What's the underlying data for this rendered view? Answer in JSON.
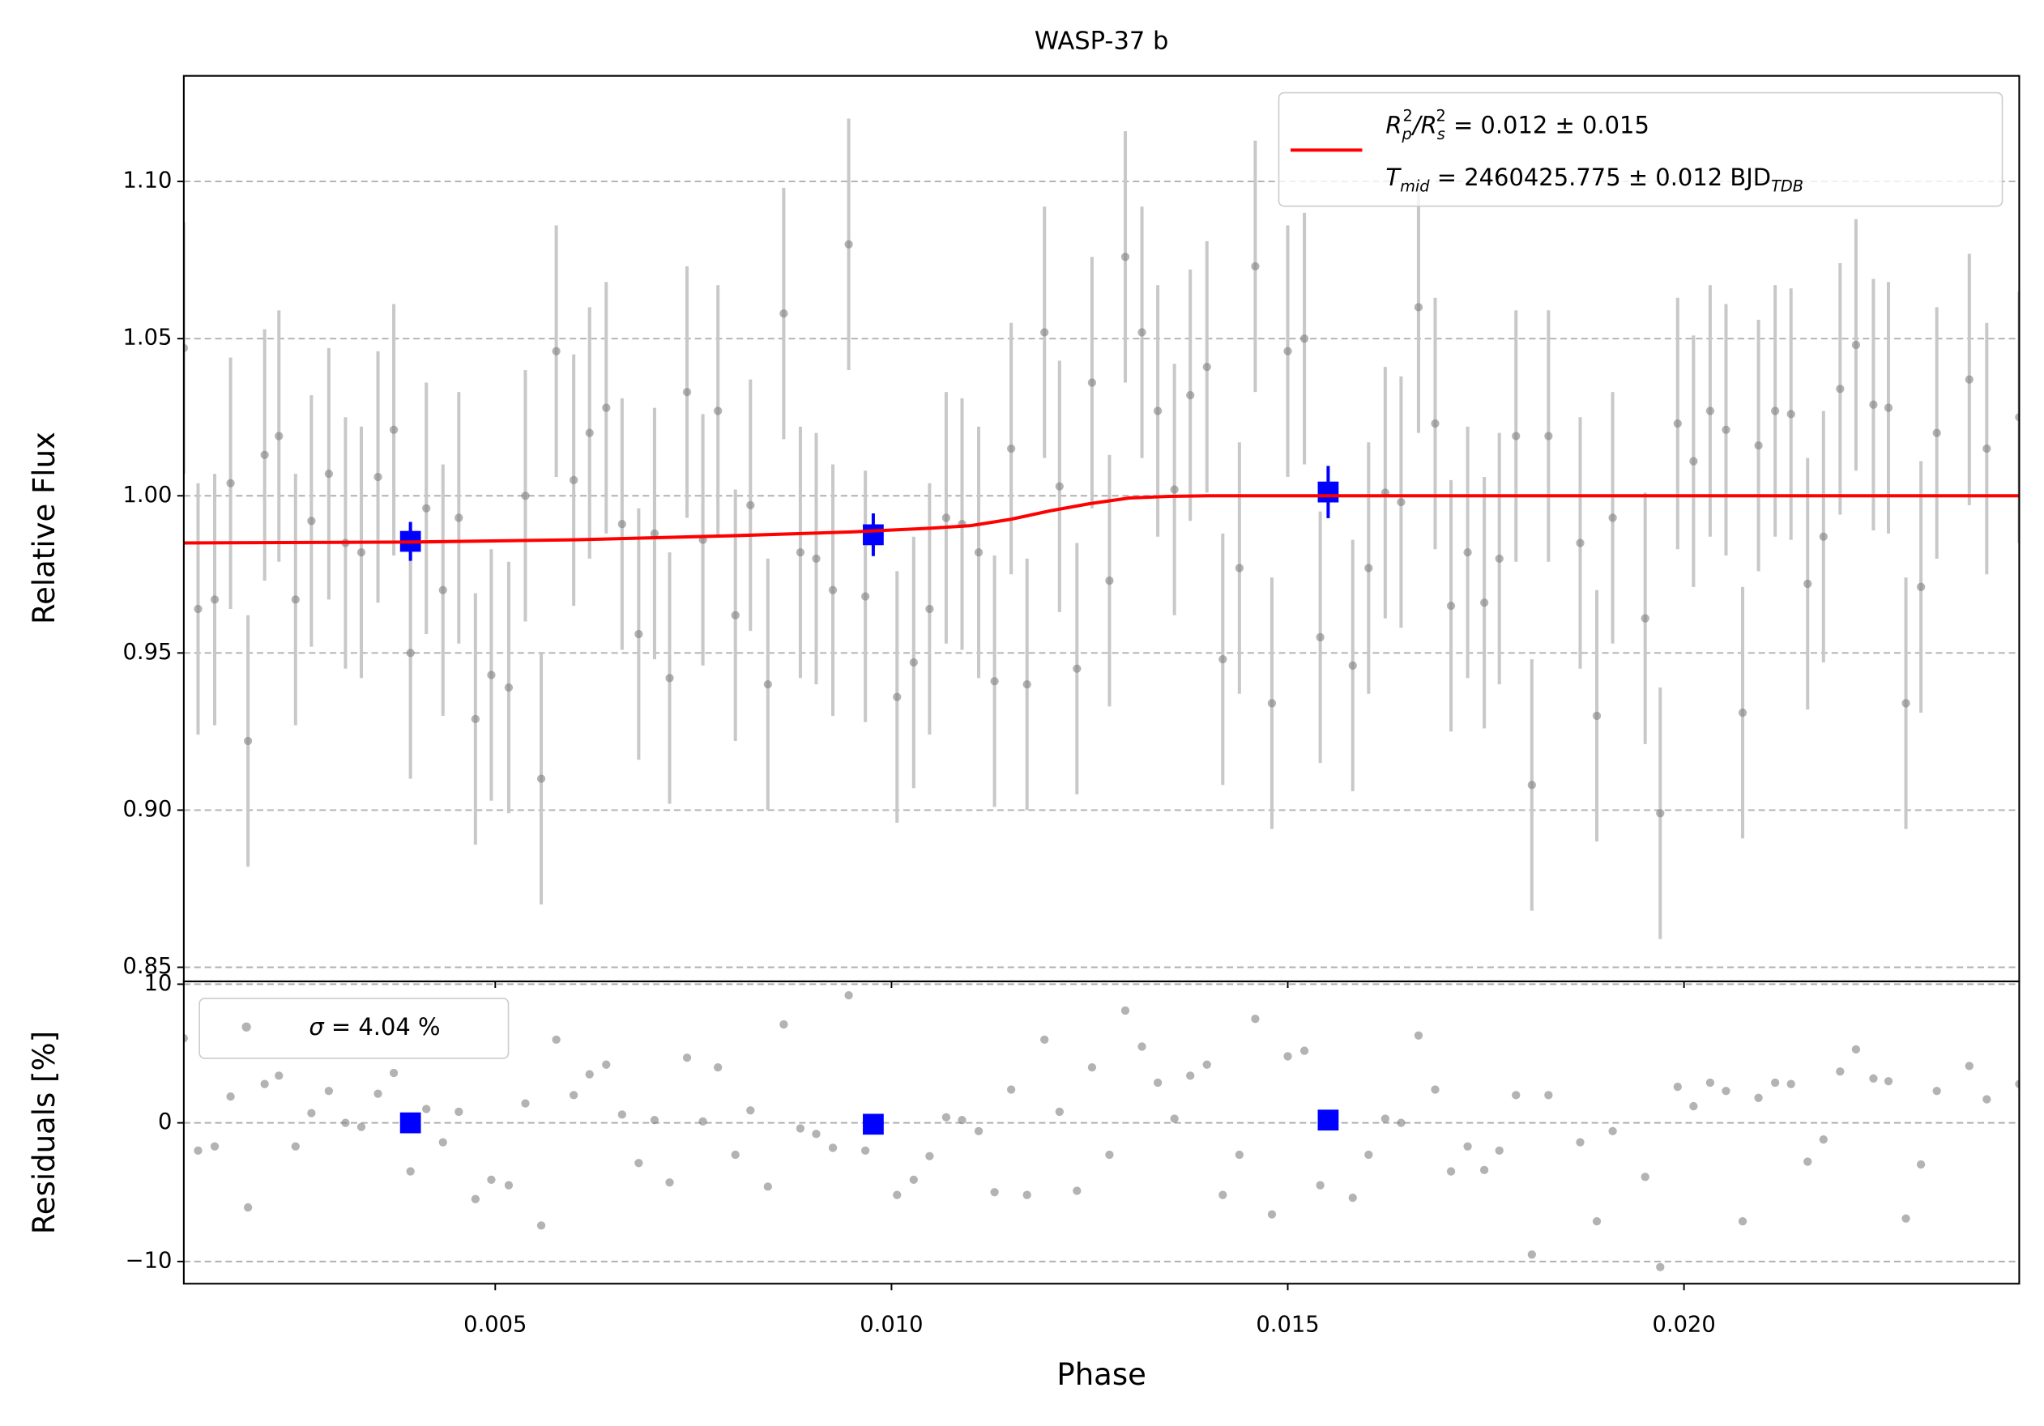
{
  "chart_data": [
    {
      "type": "scatter",
      "title": "WASP-37 b",
      "ylabel": "Relative Flux",
      "xlim": [
        0.00107,
        0.02423
      ],
      "xticks": [
        0.005,
        {
          "value": 0.01,
          "label": "0.010"
        },
        0.015,
        {
          "value": 0.02,
          "label": "0.020"
        }
      ],
      "ylim": [
        0.8455,
        1.1336
      ],
      "yticks": [
        0.85,
        {
          "value": 0.9,
          "label": "0.90"
        },
        0.95,
        {
          "value": 1.0,
          "label": "1.00"
        },
        1.05,
        {
          "value": 1.1,
          "label": "1.10"
        }
      ],
      "grid": true,
      "legend_position": "upper right",
      "series": [
        {
          "kind": "errorbar",
          "color": "#808080",
          "error_color": "#c8c8c8",
          "error": 0.04,
          "x": [
            0.00107,
            0.00125,
            0.00146,
            0.00166,
            0.00188,
            0.00209,
            0.00227,
            0.00248,
            0.00268,
            0.0029,
            0.00311,
            0.00331,
            0.00352,
            0.00372,
            0.00393,
            0.00413,
            0.00434,
            0.00454,
            0.00475,
            0.00495,
            0.00517,
            0.00538,
            0.00558,
            0.00577,
            0.00599,
            0.00619,
            0.0064,
            0.0066,
            0.00681,
            0.00701,
            0.0072,
            0.00742,
            0.00762,
            0.00781,
            0.00803,
            0.00822,
            0.00844,
            0.00864,
            0.00885,
            0.00905,
            0.00926,
            0.00946,
            0.00967,
            0.01007,
            0.01028,
            0.01048,
            0.01069,
            0.01089,
            0.0111,
            0.0113,
            0.01151,
            0.01171,
            0.01193,
            0.01212,
            0.01234,
            0.01253,
            0.01275,
            0.01295,
            0.01316,
            0.01336,
            0.01357,
            0.01377,
            0.01398,
            0.01418,
            0.01439,
            0.01459,
            0.0148,
            0.015,
            0.01521,
            0.01541,
            0.01582,
            0.01602,
            0.01623,
            0.01643,
            0.01665,
            0.01686,
            0.01706,
            0.01727,
            0.01748,
            0.01767,
            0.01788,
            0.01808,
            0.01829,
            0.01869,
            0.0189,
            0.0191,
            0.01951,
            0.0197,
            0.01992,
            0.02012,
            0.02033,
            0.02053,
            0.02074,
            0.02094,
            0.02115,
            0.02135,
            0.02156,
            0.02176,
            0.02197,
            0.02217,
            0.02239,
            0.02258,
            0.0228,
            0.02299,
            0.02319,
            0.0236,
            0.02382,
            0.02423
          ],
          "values": [
            1.047,
            0.964,
            0.967,
            1.004,
            0.922,
            1.013,
            1.019,
            0.967,
            0.992,
            1.007,
            0.985,
            0.982,
            1.006,
            1.021,
            0.95,
            0.996,
            0.97,
            0.993,
            0.929,
            0.943,
            0.939,
            1.0,
            0.91,
            1.046,
            1.005,
            1.02,
            1.028,
            0.991,
            0.956,
            0.988,
            0.942,
            1.033,
            0.986,
            1.027,
            0.962,
            0.997,
            0.94,
            1.058,
            0.982,
            0.98,
            0.97,
            1.08,
            0.968,
            0.936,
            0.947,
            0.964,
            0.993,
            0.991,
            0.982,
            0.941,
            1.015,
            0.94,
            1.052,
            1.003,
            0.945,
            1.036,
            0.973,
            1.076,
            1.052,
            1.027,
            1.002,
            1.032,
            1.041,
            0.948,
            0.977,
            1.073,
            0.934,
            1.046,
            1.05,
            0.955,
            0.946,
            0.977,
            1.001,
            0.998,
            1.06,
            1.023,
            0.965,
            0.982,
            0.966,
            0.98,
            1.019,
            0.908,
            1.019,
            0.985,
            0.93,
            0.993,
            0.961,
            0.899,
            1.023,
            1.011,
            1.027,
            1.021,
            0.931,
            1.016,
            1.027,
            1.026,
            0.972,
            0.987,
            1.034,
            1.048,
            1.029,
            1.028,
            0.934,
            0.971,
            1.02,
            1.037,
            1.015,
            1.025
          ]
        },
        {
          "kind": "binned",
          "color": "#0000ff",
          "x": [
            0.00393,
            0.00977,
            0.01551
          ],
          "values": [
            0.9855,
            0.9876,
            1.0012
          ],
          "errors": [
            0.0062,
            0.0068,
            0.0083
          ]
        },
        {
          "kind": "line",
          "color": "#ff0000",
          "legend": [
            "R",
            "p",
            "2",
            "/R",
            "s",
            "2",
            " = 0.012 ± 0.015",
            "T",
            "mid",
            " = 2460425.775 ± 0.012 BJD",
            "TDB"
          ],
          "x": [
            0.00107,
            0.004,
            0.006,
            0.008,
            0.0095,
            0.0105,
            0.011,
            0.0115,
            0.012,
            0.0125,
            0.013,
            0.0135,
            0.014,
            0.02423
          ],
          "values": [
            0.985,
            0.9853,
            0.986,
            0.9873,
            0.9885,
            0.9897,
            0.9905,
            0.9925,
            0.9952,
            0.9975,
            0.9993,
            0.9998,
            1.0,
            1.0
          ]
        }
      ]
    },
    {
      "type": "scatter",
      "ylabel": "Residuals [%]",
      "xlabel": "Phase",
      "xlim": [
        0.00107,
        0.02423
      ],
      "xticks": [
        0.005,
        {
          "value": 0.01,
          "label": "0.010"
        },
        0.015,
        {
          "value": 0.02,
          "label": "0.020"
        }
      ],
      "ylim": [
        -11.6,
        10.2
      ],
      "yticks": [
        {
          "value": -10,
          "label": "−10"
        },
        0,
        10
      ],
      "grid": true,
      "legend_position": "upper left",
      "series": [
        {
          "kind": "points",
          "color": "#808080",
          "legend": [
            "σ",
            " = 4.04 %"
          ],
          "x": [
            0.00107,
            0.00125,
            0.00146,
            0.00166,
            0.00188,
            0.00209,
            0.00227,
            0.00248,
            0.00268,
            0.0029,
            0.00311,
            0.00331,
            0.00352,
            0.00372,
            0.00393,
            0.00413,
            0.00434,
            0.00454,
            0.00475,
            0.00495,
            0.00517,
            0.00538,
            0.00558,
            0.00577,
            0.00599,
            0.00619,
            0.0064,
            0.0066,
            0.00681,
            0.00701,
            0.0072,
            0.00742,
            0.00762,
            0.00781,
            0.00803,
            0.00822,
            0.00844,
            0.00864,
            0.00885,
            0.00905,
            0.00926,
            0.00946,
            0.00967,
            0.01007,
            0.01028,
            0.01048,
            0.01069,
            0.01089,
            0.0111,
            0.0113,
            0.01151,
            0.01171,
            0.01193,
            0.01212,
            0.01234,
            0.01253,
            0.01275,
            0.01295,
            0.01316,
            0.01336,
            0.01357,
            0.01377,
            0.01398,
            0.01418,
            0.01439,
            0.01459,
            0.0148,
            0.015,
            0.01521,
            0.01541,
            0.01582,
            0.01602,
            0.01623,
            0.01643,
            0.01665,
            0.01686,
            0.01706,
            0.01727,
            0.01748,
            0.01767,
            0.01788,
            0.01808,
            0.01829,
            0.01869,
            0.0189,
            0.0191,
            0.01951,
            0.0197,
            0.01992,
            0.02012,
            0.02033,
            0.02053,
            0.02074,
            0.02094,
            0.02115,
            0.02135,
            0.02156,
            0.02176,
            0.02197,
            0.02217,
            0.02239,
            0.02258,
            0.0228,
            0.02299,
            0.02319,
            0.0236,
            0.02382,
            0.02423
          ],
          "values": [
            6.1,
            -2.0,
            -1.7,
            1.9,
            -6.1,
            2.8,
            3.4,
            -1.7,
            0.7,
            2.3,
            0,
            -0.3,
            2.1,
            3.6,
            -3.5,
            1.0,
            -1.4,
            0.8,
            -5.5,
            -4.1,
            -4.5,
            1.4,
            -7.4,
            6.0,
            2.0,
            3.5,
            4.2,
            0.6,
            -2.9,
            0.2,
            -4.3,
            4.7,
            0.1,
            4.0,
            -2.3,
            0.9,
            -4.6,
            7.1,
            -0.4,
            -0.8,
            -1.8,
            9.2,
            -2.0,
            -5.2,
            -4.1,
            -2.4,
            0.4,
            0.2,
            -0.6,
            -5.0,
            2.4,
            -5.2,
            6.0,
            0.8,
            -4.9,
            4.0,
            -2.3,
            8.1,
            5.5,
            2.9,
            0.3,
            3.4,
            4.2,
            -5.2,
            -2.3,
            7.5,
            -6.6,
            4.8,
            5.2,
            -4.5,
            -5.4,
            -2.3,
            0.3,
            0,
            6.3,
            2.4,
            -3.5,
            -1.7,
            -3.4,
            -2.0,
            2.0,
            -9.5,
            2.0,
            -1.4,
            -7.1,
            -0.6,
            -3.9,
            -10.4,
            2.6,
            1.2,
            2.9,
            2.3,
            -7.1,
            1.8,
            2.9,
            2.8,
            -2.8,
            -1.2,
            3.7,
            5.3,
            3.2,
            3.0,
            -6.9,
            -3.0,
            2.3,
            4.1,
            1.7,
            2.8
          ]
        },
        {
          "kind": "binned",
          "color": "#0000ff",
          "x": [
            0.00393,
            0.00977,
            0.01551
          ],
          "values": [
            0,
            -0.1,
            0.2
          ]
        }
      ]
    }
  ]
}
